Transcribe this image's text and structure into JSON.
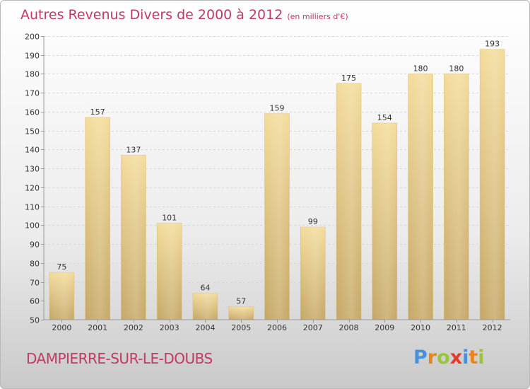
{
  "title": "Autres Revenus Divers de 2000 à 2012",
  "unit": "(en milliers d'€)",
  "commune": "DAMPIERRE-SUR-LE-DOUBS",
  "logo": {
    "letters": [
      "P",
      "r",
      "o",
      "x",
      "i",
      "t",
      "i"
    ],
    "colors": [
      "#4a90d9",
      "#e8851c",
      "#9ac43c",
      "#e23a2e",
      "#4a90d9",
      "#e8851c",
      "#9ac43c"
    ]
  },
  "chart_data": {
    "type": "bar",
    "categories": [
      "2000",
      "2001",
      "2002",
      "2003",
      "2004",
      "2005",
      "2006",
      "2007",
      "2008",
      "2009",
      "2010",
      "2011",
      "2012"
    ],
    "values": [
      75,
      157,
      137,
      101,
      64,
      57,
      159,
      99,
      175,
      154,
      180,
      180,
      193
    ],
    "ylim": [
      50,
      200
    ],
    "yticks": [
      50,
      60,
      70,
      80,
      90,
      100,
      110,
      120,
      130,
      140,
      150,
      160,
      170,
      180,
      190,
      200
    ],
    "grid": true,
    "bar_color": "#e8cd86"
  }
}
